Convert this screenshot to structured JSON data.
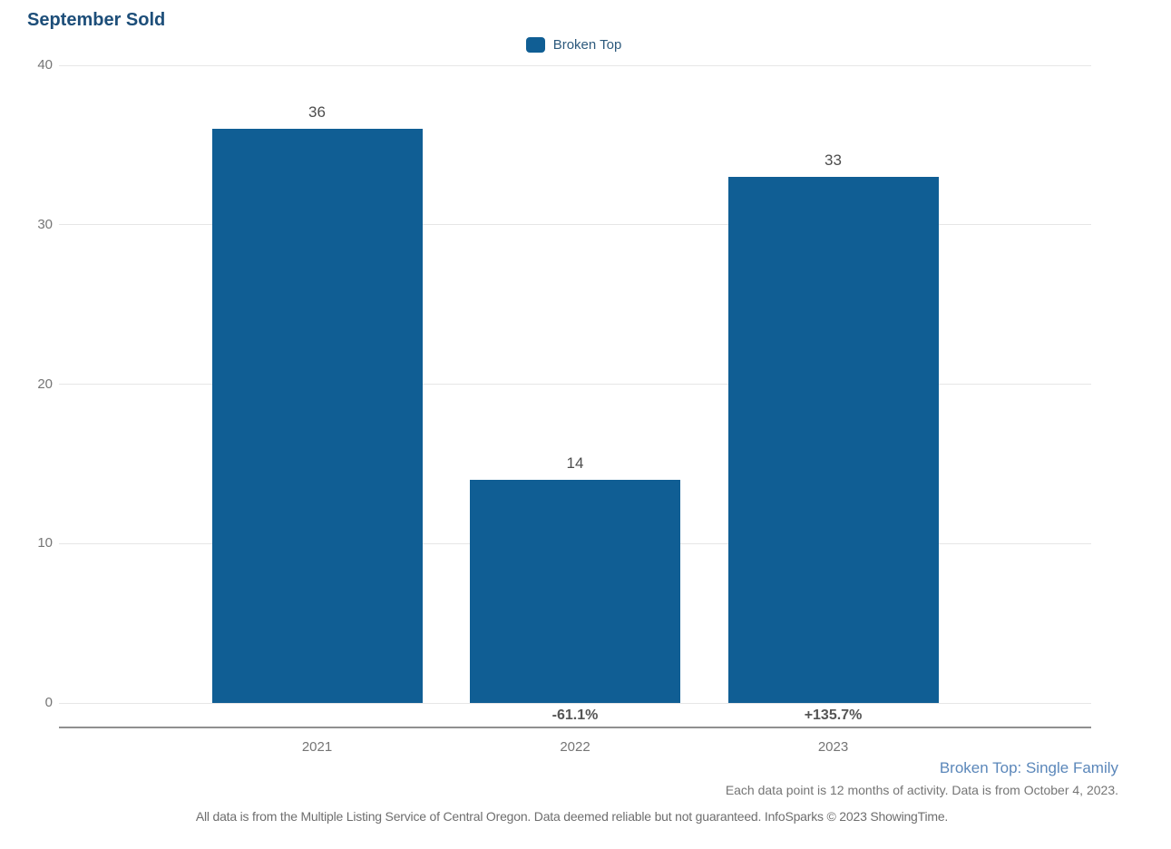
{
  "page": {
    "title": "September Sold"
  },
  "legend": {
    "items": [
      {
        "label": "Broken Top",
        "color": "#105e94"
      }
    ]
  },
  "chart_data": {
    "type": "bar",
    "title": "September Sold",
    "categories": [
      "2021",
      "2022",
      "2023"
    ],
    "series": [
      {
        "name": "Broken Top",
        "values": [
          36,
          14,
          33
        ],
        "color": "#105e94"
      }
    ],
    "value_labels": [
      "36",
      "14",
      "33"
    ],
    "pct_change_labels": [
      "",
      "-61.1%",
      "+135.7%"
    ],
    "xlabel": "",
    "ylabel": "",
    "ylim": [
      0,
      40
    ],
    "yticks": [
      0,
      10,
      20,
      30,
      40
    ],
    "grid": true,
    "legend_position": "top-center"
  },
  "footer": {
    "series_note": "Broken Top: Single Family",
    "data_note": "Each data point is 12 months of activity. Data is from October 4, 2023.",
    "disclaimer": "All data is from the Multiple Listing Service of Central Oregon. Data deemed reliable but not guaranteed. InfoSparks © 2023 ShowingTime."
  },
  "colors": {
    "bar": "#105e94",
    "title_text": "#1d4e79",
    "legend_text": "#2d5a7d",
    "footer_link_text": "#5b87ba",
    "tick_text": "#757575",
    "value_label_text": "#4d4d4d",
    "pct_label_text": "#555555",
    "axis_line": "#909090",
    "gridline": "#e6e6e6"
  }
}
